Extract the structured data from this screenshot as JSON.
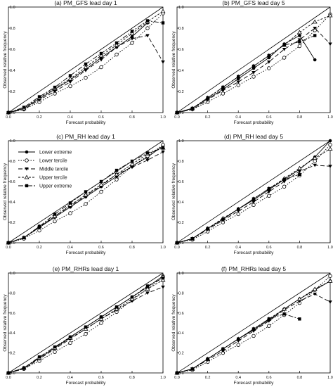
{
  "figure": {
    "legend_labels": [
      "Lower extreme",
      "Lower tercile",
      "Middle tercile",
      "Upper tercile",
      "Upper extreme"
    ]
  },
  "chart_data": [
    {
      "type": "line",
      "title": "(a) PM_GFS lead day 1",
      "xlabel": "Forecast probability",
      "ylabel": "Observed relative frequency",
      "xlim": [
        0,
        1
      ],
      "ylim": [
        0,
        1
      ],
      "x_ticks": [
        "0.0",
        "0.2",
        "0.4",
        "0.6",
        "0.8",
        "1.0"
      ],
      "y_ticks": [
        "0.0",
        "0.2",
        "0.4",
        "0.6",
        "0.8",
        "1.0"
      ],
      "legend": false,
      "series": [
        {
          "name": "Lower extreme",
          "x": [
            0,
            0.1,
            0.2,
            0.3,
            0.4,
            0.5,
            0.6,
            0.7,
            0.8,
            0.9
          ],
          "y": [
            0.0,
            0.04,
            0.13,
            0.22,
            0.31,
            0.41,
            0.52,
            0.62,
            0.72,
            0.85
          ]
        },
        {
          "name": "Lower tercile",
          "x": [
            0,
            0.1,
            0.2,
            0.3,
            0.4,
            0.5,
            0.6,
            0.7,
            0.8,
            0.9,
            1.0
          ],
          "y": [
            0.0,
            0.03,
            0.1,
            0.18,
            0.25,
            0.33,
            0.43,
            0.55,
            0.66,
            0.8,
            0.94
          ]
        },
        {
          "name": "Middle tercile",
          "x": [
            0,
            0.1,
            0.2,
            0.3,
            0.4,
            0.5,
            0.6,
            0.7,
            0.8,
            0.9,
            1.0
          ],
          "y": [
            0.0,
            0.03,
            0.12,
            0.2,
            0.29,
            0.4,
            0.5,
            0.62,
            0.7,
            0.73,
            0.48
          ]
        },
        {
          "name": "Upper tercile",
          "x": [
            0,
            0.1,
            0.2,
            0.3,
            0.4,
            0.5,
            0.6,
            0.7,
            0.8,
            0.9,
            1.0
          ],
          "y": [
            0.0,
            0.04,
            0.14,
            0.23,
            0.32,
            0.43,
            0.54,
            0.64,
            0.75,
            0.86,
            0.96
          ]
        },
        {
          "name": "Upper extreme",
          "x": [
            0,
            0.1,
            0.2,
            0.3,
            0.4,
            0.5,
            0.6,
            0.7,
            0.8,
            0.9,
            1.0
          ],
          "y": [
            0.0,
            0.05,
            0.15,
            0.24,
            0.35,
            0.46,
            0.56,
            0.66,
            0.77,
            0.87,
            0.85
          ]
        }
      ]
    },
    {
      "type": "line",
      "title": "(b) PM_GFS lead day 5",
      "xlabel": "Forecast probability",
      "ylabel": "Observed relative frequency",
      "xlim": [
        0,
        1
      ],
      "ylim": [
        0,
        1
      ],
      "x_ticks": [
        "0.0",
        "0.2",
        "0.4",
        "0.6",
        "0.8",
        "1.0"
      ],
      "y_ticks": [
        "0.0",
        "0.2",
        "0.4",
        "0.6",
        "0.8",
        "1.0"
      ],
      "legend": false,
      "series": [
        {
          "name": "Lower extreme",
          "x": [
            0,
            0.1,
            0.2,
            0.3,
            0.4,
            0.5,
            0.6,
            0.7,
            0.8,
            0.9
          ],
          "y": [
            0.0,
            0.04,
            0.13,
            0.22,
            0.32,
            0.42,
            0.52,
            0.65,
            0.73,
            0.5
          ]
        },
        {
          "name": "Lower tercile",
          "x": [
            0,
            0.1,
            0.2,
            0.3,
            0.4,
            0.5,
            0.6,
            0.7,
            0.8,
            0.9,
            1.0
          ],
          "y": [
            0.0,
            0.03,
            0.1,
            0.18,
            0.26,
            0.34,
            0.42,
            0.52,
            0.63,
            0.78,
            0.93
          ]
        },
        {
          "name": "Middle tercile",
          "x": [
            0,
            0.1,
            0.2,
            0.3,
            0.4,
            0.5,
            0.6,
            0.7,
            0.8,
            0.9,
            1.0
          ],
          "y": [
            0.0,
            0.03,
            0.12,
            0.21,
            0.29,
            0.38,
            0.48,
            0.6,
            0.69,
            0.8,
            0.65
          ]
        },
        {
          "name": "Upper tercile",
          "x": [
            0,
            0.1,
            0.2,
            0.3,
            0.4,
            0.5,
            0.6,
            0.7,
            0.8,
            0.9,
            1.0
          ],
          "y": [
            0.0,
            0.04,
            0.14,
            0.24,
            0.34,
            0.44,
            0.54,
            0.64,
            0.76,
            0.86,
            0.92
          ]
        },
        {
          "name": "Upper extreme",
          "x": [
            0,
            0.1,
            0.2,
            0.3,
            0.4,
            0.5,
            0.6,
            0.7,
            0.8,
            0.9
          ],
          "y": [
            0.0,
            0.04,
            0.14,
            0.24,
            0.34,
            0.44,
            0.54,
            0.64,
            0.67,
            0.73
          ]
        }
      ]
    },
    {
      "type": "line",
      "title": "(c) PM_RH lead day 1",
      "xlabel": "Forecast probability",
      "ylabel": "Observed relative frequency",
      "xlim": [
        0,
        1
      ],
      "ylim": [
        0,
        1
      ],
      "x_ticks": [
        "0.0",
        "0.2",
        "0.4",
        "0.6",
        "0.8",
        "1.0"
      ],
      "y_ticks": [
        "0.0",
        "0.2",
        "0.4",
        "0.6",
        "0.8",
        "1.0"
      ],
      "legend": true,
      "legend_position": "top-left",
      "series": [
        {
          "name": "Lower extreme",
          "x": [
            0,
            0.1,
            0.2,
            0.3,
            0.4,
            0.5,
            0.6,
            0.7,
            0.8,
            0.9,
            1.0
          ],
          "y": [
            0.0,
            0.05,
            0.15,
            0.25,
            0.35,
            0.45,
            0.55,
            0.65,
            0.75,
            0.84,
            0.95
          ]
        },
        {
          "name": "Lower tercile",
          "x": [
            0,
            0.1,
            0.2,
            0.3,
            0.4,
            0.5,
            0.6,
            0.7,
            0.8,
            0.9,
            1.0
          ],
          "y": [
            0.0,
            0.04,
            0.12,
            0.21,
            0.29,
            0.38,
            0.5,
            0.62,
            0.75,
            0.85,
            0.96
          ]
        },
        {
          "name": "Middle tercile",
          "x": [
            0,
            0.1,
            0.2,
            0.3,
            0.4,
            0.5,
            0.6,
            0.7,
            0.8,
            0.9,
            1.0
          ],
          "y": [
            0.0,
            0.05,
            0.15,
            0.26,
            0.36,
            0.46,
            0.56,
            0.67,
            0.74,
            0.81,
            0.89
          ]
        },
        {
          "name": "Upper tercile",
          "x": [
            0,
            0.1,
            0.2,
            0.3,
            0.4,
            0.5,
            0.6,
            0.7,
            0.8,
            0.9,
            1.0
          ],
          "y": [
            0.0,
            0.05,
            0.16,
            0.26,
            0.37,
            0.47,
            0.57,
            0.67,
            0.77,
            0.87,
            0.93
          ]
        },
        {
          "name": "Upper extreme",
          "x": [
            0,
            0.1,
            0.2,
            0.3,
            0.4,
            0.5,
            0.6,
            0.7,
            0.8,
            0.9,
            1.0
          ],
          "y": [
            0.0,
            0.05,
            0.16,
            0.28,
            0.39,
            0.5,
            0.6,
            0.71,
            0.8,
            0.88,
            0.93
          ]
        }
      ]
    },
    {
      "type": "line",
      "title": "(d) PM_RH lead day 5",
      "xlabel": "Forecast probability",
      "ylabel": "Observed relative frequency",
      "xlim": [
        0,
        1
      ],
      "ylim": [
        0,
        1
      ],
      "x_ticks": [
        "0.0",
        "0.2",
        "0.4",
        "0.6",
        "0.8",
        "1.0"
      ],
      "y_ticks": [
        "0.0",
        "0.2",
        "0.4",
        "0.6",
        "0.8",
        "1.0"
      ],
      "legend": false,
      "series": [
        {
          "name": "Lower extreme",
          "x": [
            0,
            0.1,
            0.2,
            0.3,
            0.4,
            0.5,
            0.6,
            0.7,
            0.8,
            0.9,
            1.0
          ],
          "y": [
            0.0,
            0.04,
            0.14,
            0.23,
            0.33,
            0.42,
            0.52,
            0.62,
            0.72,
            0.84,
            1.0
          ]
        },
        {
          "name": "Lower tercile",
          "x": [
            0,
            0.1,
            0.2,
            0.3,
            0.4,
            0.5,
            0.6,
            0.7,
            0.8,
            0.9,
            1.0
          ],
          "y": [
            0.0,
            0.03,
            0.11,
            0.2,
            0.28,
            0.37,
            0.46,
            0.55,
            0.66,
            0.8,
            0.96
          ]
        },
        {
          "name": "Middle tercile",
          "x": [
            0,
            0.1,
            0.2,
            0.3,
            0.4,
            0.5,
            0.6,
            0.7,
            0.8,
            0.9,
            1.0
          ],
          "y": [
            0.0,
            0.04,
            0.13,
            0.22,
            0.31,
            0.4,
            0.5,
            0.6,
            0.7,
            0.76,
            0.75
          ]
        },
        {
          "name": "Upper tercile",
          "x": [
            0,
            0.1,
            0.2,
            0.3,
            0.4,
            0.5,
            0.6,
            0.7,
            0.8,
            0.9,
            1.0
          ],
          "y": [
            0.0,
            0.04,
            0.14,
            0.24,
            0.33,
            0.43,
            0.53,
            0.63,
            0.73,
            0.83,
            0.92
          ]
        },
        {
          "name": "Upper extreme",
          "x": [
            0,
            0.1,
            0.2,
            0.3,
            0.4,
            0.5,
            0.6,
            0.7,
            0.8
          ],
          "y": [
            0.0,
            0.04,
            0.14,
            0.23,
            0.33,
            0.43,
            0.53,
            0.62,
            0.67
          ]
        }
      ]
    },
    {
      "type": "line",
      "title": "(e) PM_RHRs lead day 1",
      "xlabel": "Forecast probability",
      "ylabel": "Observed relative frequency",
      "xlim": [
        0,
        1
      ],
      "ylim": [
        0,
        1
      ],
      "x_ticks": [
        "0.0",
        "0.2",
        "0.4",
        "0.6",
        "0.8",
        "1.0"
      ],
      "y_ticks": [
        "0.0",
        "0.2",
        "0.4",
        "0.6",
        "0.8",
        "1.0"
      ],
      "legend": false,
      "series": [
        {
          "name": "Lower extreme",
          "x": [
            0,
            0.1,
            0.2,
            0.3,
            0.4,
            0.5,
            0.6,
            0.7,
            0.8,
            0.9,
            1.0
          ],
          "y": [
            0.0,
            0.05,
            0.15,
            0.25,
            0.36,
            0.46,
            0.56,
            0.66,
            0.76,
            0.86,
            0.97
          ]
        },
        {
          "name": "Lower tercile",
          "x": [
            0,
            0.1,
            0.2,
            0.3,
            0.4,
            0.5,
            0.6,
            0.7,
            0.8,
            0.9,
            1.0
          ],
          "y": [
            0.0,
            0.04,
            0.12,
            0.21,
            0.3,
            0.39,
            0.5,
            0.61,
            0.73,
            0.84,
            0.96
          ]
        },
        {
          "name": "Middle tercile",
          "x": [
            0,
            0.1,
            0.2,
            0.3,
            0.4,
            0.5,
            0.6,
            0.7,
            0.8,
            0.9,
            1.0
          ],
          "y": [
            0.0,
            0.04,
            0.14,
            0.24,
            0.34,
            0.44,
            0.54,
            0.63,
            0.72,
            0.8,
            0.86
          ]
        },
        {
          "name": "Upper tercile",
          "x": [
            0,
            0.1,
            0.2,
            0.3,
            0.4,
            0.5,
            0.6,
            0.7,
            0.8,
            0.9,
            1.0
          ],
          "y": [
            0.0,
            0.05,
            0.15,
            0.25,
            0.35,
            0.44,
            0.54,
            0.64,
            0.74,
            0.84,
            0.93
          ]
        },
        {
          "name": "Upper extreme",
          "x": [
            0,
            0.1,
            0.2,
            0.3,
            0.4,
            0.5,
            0.6,
            0.7,
            0.8,
            0.9,
            1.0
          ],
          "y": [
            0.0,
            0.05,
            0.16,
            0.26,
            0.36,
            0.46,
            0.56,
            0.66,
            0.76,
            0.87,
            0.95
          ]
        }
      ]
    },
    {
      "type": "line",
      "title": "(f) PM_RHRs lead day 5",
      "xlabel": "Forecast probability",
      "ylabel": "Observed relative frequency",
      "xlim": [
        0,
        1
      ],
      "ylim": [
        0,
        1
      ],
      "x_ticks": [
        "0.0",
        "0.2",
        "0.4",
        "0.6",
        "0.8",
        "1.0"
      ],
      "y_ticks": [
        "0.0",
        "0.2",
        "0.4",
        "0.6",
        "0.8",
        "1.0"
      ],
      "legend": false,
      "series": [
        {
          "name": "Lower extreme",
          "x": [
            0,
            0.1,
            0.2,
            0.3,
            0.4,
            0.5,
            0.6,
            0.7,
            0.8,
            0.9,
            1.0
          ],
          "y": [
            0.0,
            0.04,
            0.14,
            0.24,
            0.34,
            0.43,
            0.53,
            0.64,
            0.74,
            0.83,
            0.92
          ]
        },
        {
          "name": "Lower tercile",
          "x": [
            0,
            0.1,
            0.2,
            0.3,
            0.4,
            0.5,
            0.6,
            0.7,
            0.8,
            0.9,
            1.0
          ],
          "y": [
            0.0,
            0.03,
            0.11,
            0.2,
            0.28,
            0.37,
            0.47,
            0.58,
            0.7,
            0.83,
            0.97
          ]
        },
        {
          "name": "Middle tercile",
          "x": [
            0,
            0.1,
            0.2,
            0.3,
            0.4,
            0.5,
            0.6,
            0.7,
            0.8,
            0.9,
            1.0
          ],
          "y": [
            0.0,
            0.04,
            0.13,
            0.22,
            0.32,
            0.42,
            0.52,
            0.63,
            0.72,
            0.79,
            0.71
          ]
        },
        {
          "name": "Upper tercile",
          "x": [
            0,
            0.1,
            0.2,
            0.3,
            0.4,
            0.5,
            0.6,
            0.7,
            0.8,
            0.9,
            1.0
          ],
          "y": [
            0.0,
            0.04,
            0.14,
            0.24,
            0.34,
            0.44,
            0.54,
            0.64,
            0.74,
            0.84,
            0.92
          ]
        },
        {
          "name": "Upper extreme",
          "x": [
            0,
            0.1,
            0.2,
            0.3,
            0.4,
            0.5,
            0.6,
            0.7,
            0.8
          ],
          "y": [
            0.0,
            0.04,
            0.14,
            0.24,
            0.34,
            0.44,
            0.54,
            0.59,
            0.54
          ]
        }
      ]
    }
  ]
}
